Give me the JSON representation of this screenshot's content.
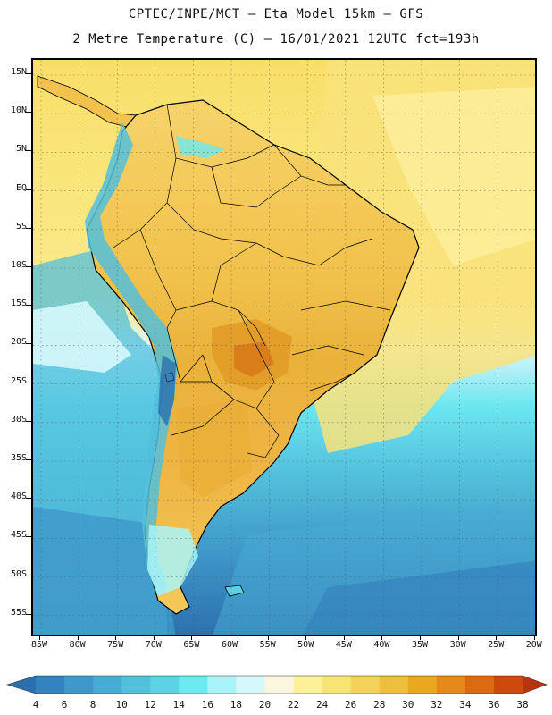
{
  "header": {
    "line1": "CPTEC/INPE/MCT –  Eta Model 15km – GFS",
    "line2": "2 Metre Temperature (C) – 16/01/2021 12UTC fct=193h"
  },
  "map": {
    "region": "South America",
    "variable": "2 Metre Temperature",
    "units": "C",
    "lat_labels": [
      "15N",
      "10N",
      "5N",
      "EQ",
      "5S",
      "10S",
      "15S",
      "20S",
      "25S",
      "30S",
      "35S",
      "40S",
      "45S",
      "50S",
      "55S"
    ],
    "lon_labels": [
      "85W",
      "80W",
      "75W",
      "70W",
      "65W",
      "60W",
      "55W",
      "50W",
      "45W",
      "40W",
      "35W",
      "30W",
      "25W",
      "20W"
    ]
  },
  "colorbar": {
    "labels": [
      "4",
      "6",
      "8",
      "10",
      "12",
      "14",
      "16",
      "18",
      "20",
      "22",
      "24",
      "26",
      "28",
      "30",
      "32",
      "34",
      "36",
      "38"
    ],
    "colors": [
      "#2c6fae",
      "#3583be",
      "#3f98c9",
      "#48abd4",
      "#52bfdc",
      "#5cd2e4",
      "#6de9f0",
      "#a9f4f8",
      "#d6f8fb",
      "#fbf6dd",
      "#fcf09a",
      "#f8e474",
      "#f4d25a",
      "#eebe3d",
      "#e8a820",
      "#e4891a",
      "#dc6a12",
      "#cc4a0d",
      "#b8340c"
    ]
  }
}
